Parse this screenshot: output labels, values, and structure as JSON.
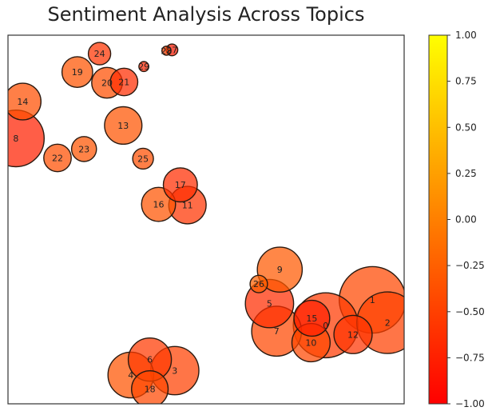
{
  "chart_data": {
    "type": "scatter",
    "title": "Sentiment Analysis Across Topics",
    "xlabel": "",
    "ylabel": "",
    "grid": false,
    "legend": "none",
    "colormap": [
      "#ff0000",
      "#ffff00"
    ],
    "colorbar": {
      "range": [
        -1.0,
        1.0
      ],
      "ticks": [
        "1.00",
        "0.75",
        "0.50",
        "0.25",
        "0.00",
        "−0.25",
        "−0.50",
        "−0.75",
        "−1.00"
      ],
      "placement": "right"
    },
    "points": [
      {
        "label": "0",
        "x": 0.802,
        "y": 0.213,
        "size": 0.78,
        "sentiment": -0.55
      },
      {
        "label": "1",
        "x": 0.92,
        "y": 0.282,
        "size": 0.8,
        "sentiment": -0.45
      },
      {
        "label": "2",
        "x": 0.958,
        "y": 0.22,
        "size": 0.74,
        "sentiment": -0.5
      },
      {
        "label": "3",
        "x": 0.421,
        "y": 0.09,
        "size": 0.58,
        "sentiment": -0.5
      },
      {
        "label": "4",
        "x": 0.31,
        "y": 0.078,
        "size": 0.55,
        "sentiment": -0.35
      },
      {
        "label": "5",
        "x": 0.66,
        "y": 0.272,
        "size": 0.58,
        "sentiment": -0.65
      },
      {
        "label": "6",
        "x": 0.358,
        "y": 0.12,
        "size": 0.52,
        "sentiment": -0.55
      },
      {
        "label": "7",
        "x": 0.678,
        "y": 0.197,
        "size": 0.6,
        "sentiment": -0.45
      },
      {
        "label": "8",
        "x": 0.02,
        "y": 0.72,
        "size": 0.68,
        "sentiment": -0.75
      },
      {
        "label": "9",
        "x": 0.686,
        "y": 0.364,
        "size": 0.54,
        "sentiment": -0.3
      },
      {
        "label": "10",
        "x": 0.765,
        "y": 0.166,
        "size": 0.46,
        "sentiment": -0.45
      },
      {
        "label": "11",
        "x": 0.453,
        "y": 0.539,
        "size": 0.45,
        "sentiment": -0.6
      },
      {
        "label": "12",
        "x": 0.871,
        "y": 0.188,
        "size": 0.46,
        "sentiment": -0.6
      },
      {
        "label": "13",
        "x": 0.291,
        "y": 0.755,
        "size": 0.45,
        "sentiment": -0.35
      },
      {
        "label": "14",
        "x": 0.037,
        "y": 0.82,
        "size": 0.44,
        "sentiment": -0.4
      },
      {
        "label": "15",
        "x": 0.767,
        "y": 0.232,
        "size": 0.43,
        "sentiment": -0.75
      },
      {
        "label": "16",
        "x": 0.38,
        "y": 0.541,
        "size": 0.41,
        "sentiment": -0.35
      },
      {
        "label": "17",
        "x": 0.435,
        "y": 0.594,
        "size": 0.41,
        "sentiment": -0.65
      },
      {
        "label": "18",
        "x": 0.358,
        "y": 0.04,
        "size": 0.44,
        "sentiment": -0.45
      },
      {
        "label": "19",
        "x": 0.175,
        "y": 0.9,
        "size": 0.37,
        "sentiment": -0.35
      },
      {
        "label": "20",
        "x": 0.25,
        "y": 0.871,
        "size": 0.37,
        "sentiment": -0.4
      },
      {
        "label": "21",
        "x": 0.293,
        "y": 0.873,
        "size": 0.33,
        "sentiment": -0.65
      },
      {
        "label": "22",
        "x": 0.125,
        "y": 0.667,
        "size": 0.33,
        "sentiment": -0.4
      },
      {
        "label": "23",
        "x": 0.192,
        "y": 0.691,
        "size": 0.3,
        "sentiment": -0.35
      },
      {
        "label": "24",
        "x": 0.231,
        "y": 0.95,
        "size": 0.27,
        "sentiment": -0.6
      },
      {
        "label": "25",
        "x": 0.341,
        "y": 0.665,
        "size": 0.25,
        "sentiment": -0.4
      },
      {
        "label": "26",
        "x": 0.633,
        "y": 0.325,
        "size": 0.21,
        "sentiment": -0.25
      },
      {
        "label": "27",
        "x": 0.414,
        "y": 0.96,
        "size": 0.14,
        "sentiment": -0.8
      },
      {
        "label": "28",
        "x": 0.4,
        "y": 0.958,
        "size": 0.11,
        "sentiment": -0.5
      },
      {
        "label": "29",
        "x": 0.343,
        "y": 0.915,
        "size": 0.12,
        "sentiment": -0.7
      }
    ]
  }
}
